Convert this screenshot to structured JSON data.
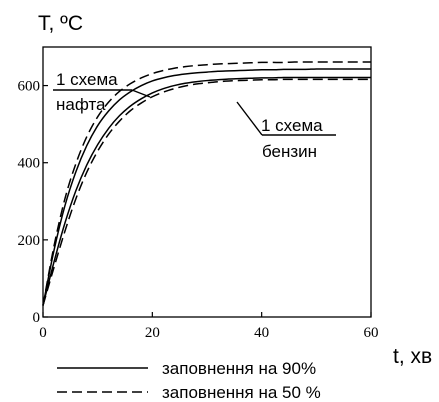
{
  "chart_data": {
    "type": "line",
    "ylabel": "T, ºC",
    "xlabel": "t, хв",
    "xlim": [
      0,
      60
    ],
    "ylim": [
      0,
      700
    ],
    "x_ticks": [
      "0",
      "20",
      "40",
      "60"
    ],
    "y_ticks": [
      "0",
      "200",
      "400",
      "600"
    ],
    "grid": false,
    "annotations": [
      {
        "line1": "1 схема",
        "line2": "нафта",
        "series_pair": "oil"
      },
      {
        "line1": "1 схема",
        "line2": "бензин",
        "series_pair": "petrol"
      }
    ],
    "legend": {
      "placement": "bottom",
      "items": [
        {
          "label": "заповнення на 90%",
          "style": "solid"
        },
        {
          "label": "заповнення на 50 %",
          "style": "dashed"
        }
      ]
    },
    "series": [
      {
        "group": "oil",
        "style": "solid",
        "x": [
          0,
          2,
          4,
          6,
          8,
          10,
          12,
          14,
          16,
          18,
          20,
          22,
          24,
          26,
          28,
          30,
          32,
          34,
          36,
          38,
          40,
          42,
          44,
          46,
          48,
          50,
          52,
          54,
          56,
          58,
          60
        ],
        "y": [
          30,
          172,
          288,
          376,
          444,
          496,
          534,
          563,
          584,
          600,
          612,
          620,
          626,
          630,
          633,
          635,
          637,
          638,
          639,
          640,
          641,
          641,
          642,
          642,
          642,
          643,
          643,
          643,
          643,
          643,
          643
        ]
      },
      {
        "group": "oil",
        "style": "dashed",
        "x": [
          0,
          2,
          4,
          6,
          8,
          10,
          12,
          14,
          16,
          18,
          20,
          22,
          24,
          26,
          28,
          30,
          32,
          34,
          36,
          38,
          40,
          42,
          44,
          46,
          48,
          50,
          52,
          54,
          56,
          58,
          60
        ],
        "y": [
          30,
          183,
          306,
          397,
          467,
          519,
          557,
          585,
          605,
          620,
          631,
          639,
          645,
          649,
          652,
          654,
          656,
          657,
          658,
          659,
          660,
          660,
          660,
          661,
          661,
          661,
          661,
          661,
          661,
          661,
          661
        ]
      },
      {
        "group": "petrol",
        "style": "solid",
        "x": [
          0,
          2,
          4,
          6,
          8,
          10,
          12,
          14,
          16,
          18,
          20,
          22,
          24,
          26,
          28,
          30,
          32,
          34,
          36,
          38,
          40,
          42,
          44,
          46,
          48,
          50,
          52,
          54,
          56,
          58,
          60
        ],
        "y": [
          30,
          142,
          243,
          327,
          394,
          447,
          489,
          522,
          547,
          566,
          581,
          592,
          600,
          606,
          610,
          613,
          615,
          617,
          618,
          619,
          620,
          620,
          621,
          621,
          621,
          621,
          621,
          621,
          621,
          621,
          621
        ]
      },
      {
        "group": "petrol",
        "style": "dashed",
        "x": [
          0,
          2,
          4,
          6,
          8,
          10,
          12,
          14,
          16,
          18,
          20,
          22,
          24,
          26,
          28,
          30,
          32,
          34,
          36,
          38,
          40,
          42,
          44,
          46,
          48,
          50,
          52,
          54,
          56,
          58,
          60
        ],
        "y": [
          30,
          128,
          222,
          306,
          375,
          430,
          474,
          508,
          535,
          555,
          571,
          583,
          592,
          599,
          604,
          607,
          610,
          612,
          613,
          614,
          615,
          615,
          616,
          616,
          616,
          616,
          616,
          616,
          616,
          616,
          616
        ]
      }
    ]
  }
}
